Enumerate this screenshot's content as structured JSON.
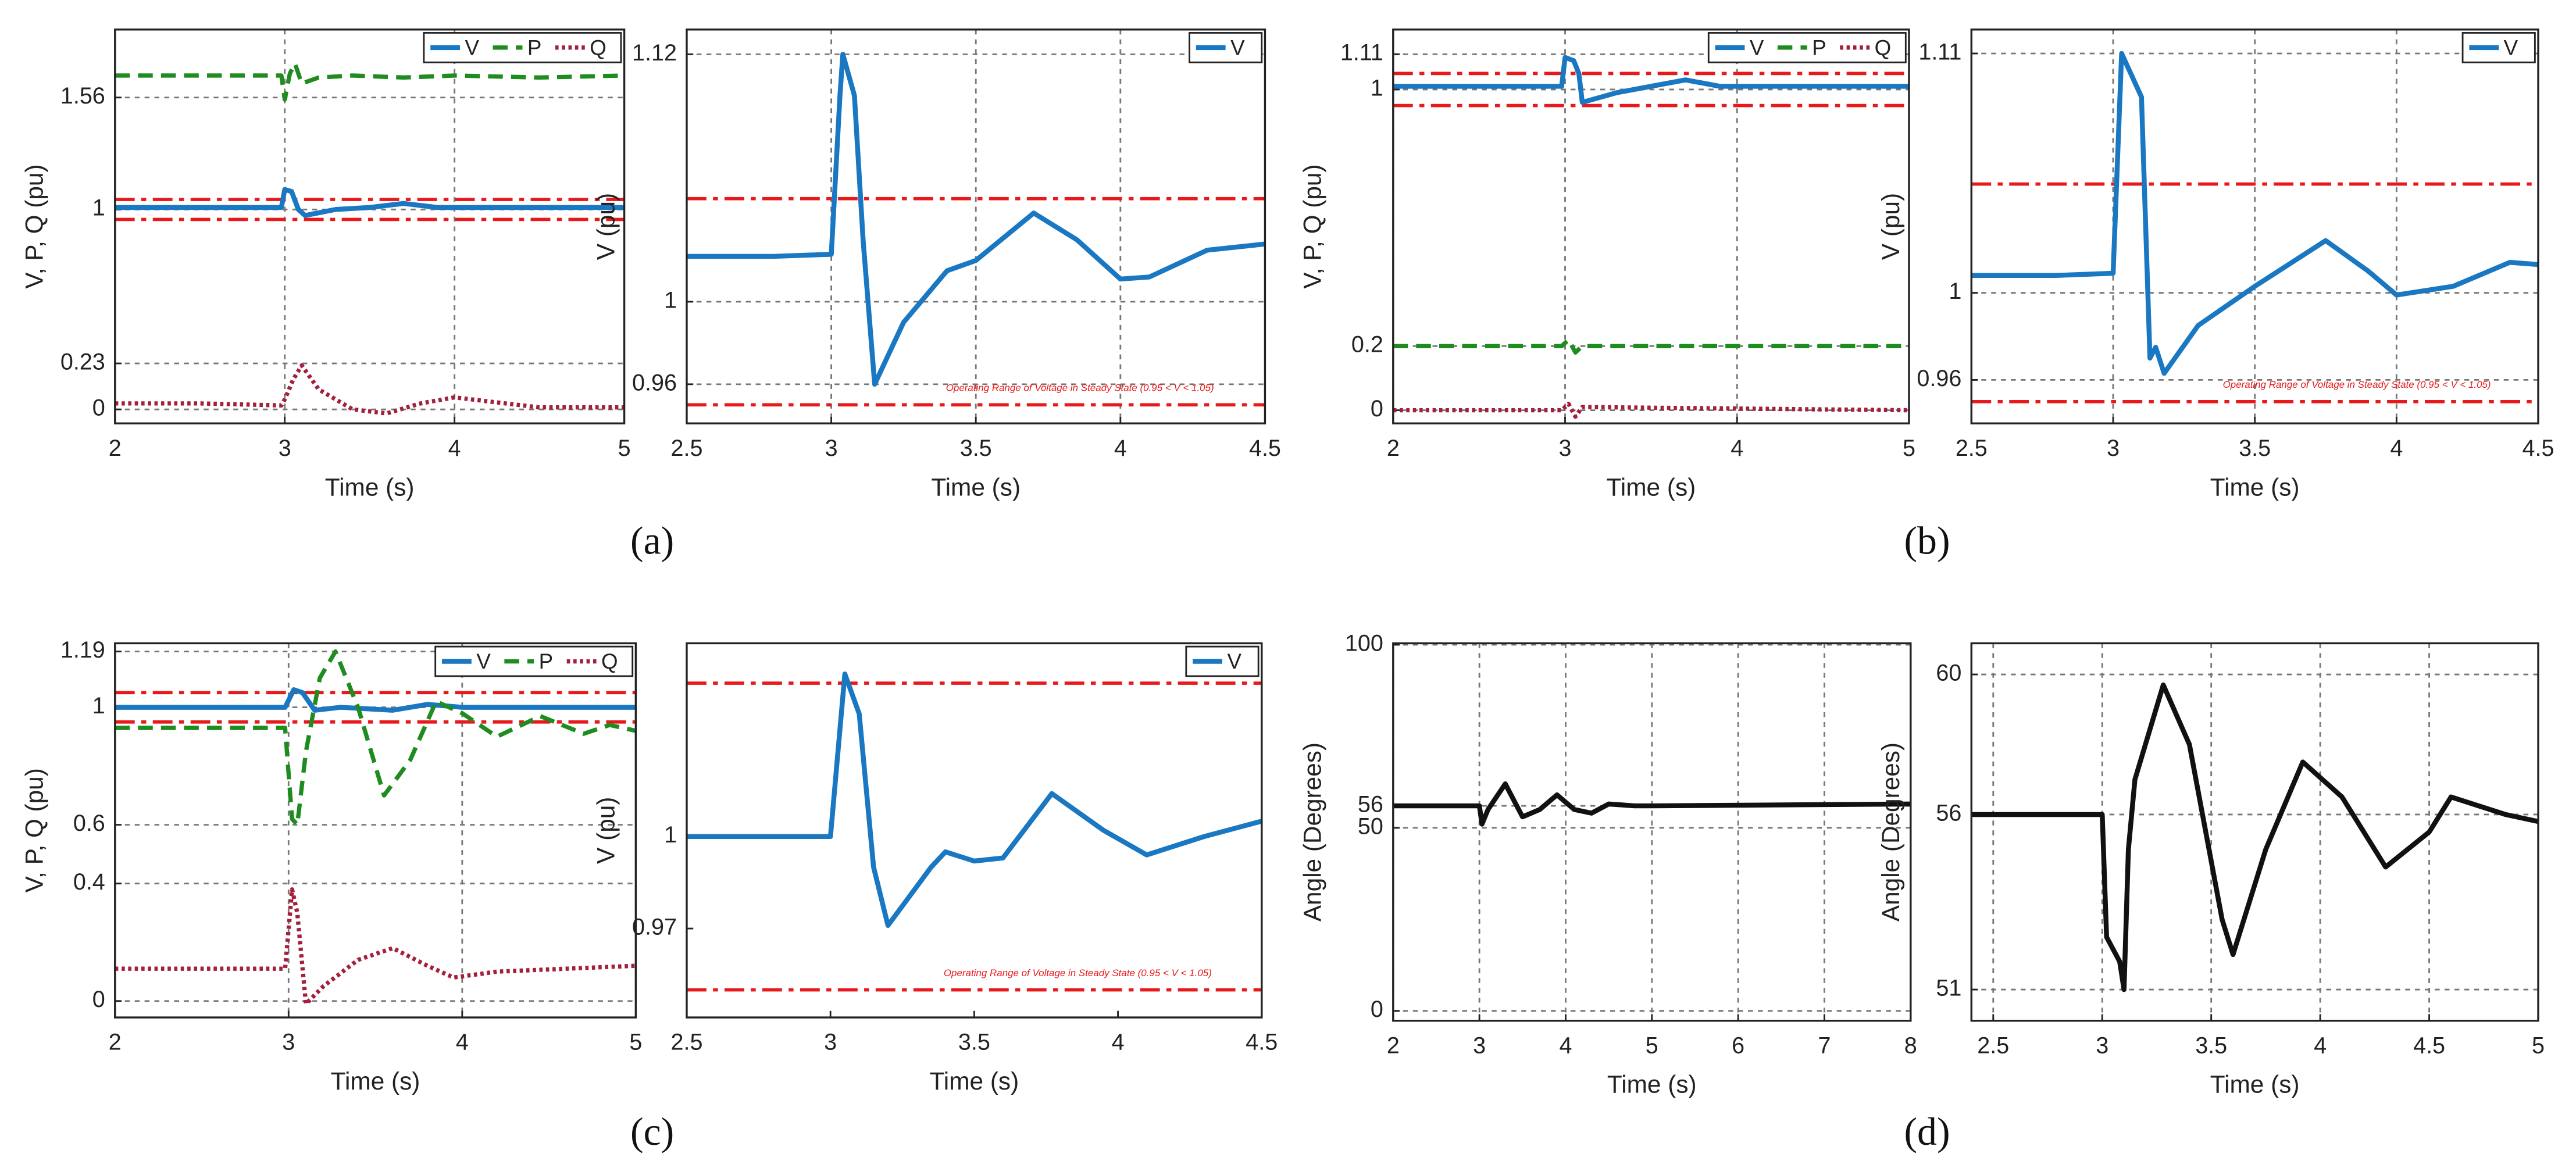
{
  "panel_labels": [
    "(a)",
    "(b)",
    "(c)",
    "(d)"
  ],
  "chart_data": [
    {
      "type": "line",
      "xlabel": "Time (s)",
      "ylabel": "V, P, Q (pu)",
      "xlim": [
        2,
        5
      ],
      "xticks": [
        2,
        3,
        4,
        5
      ],
      "ylim": [
        -0.07,
        1.9
      ],
      "yticks": [
        0,
        0.23,
        1,
        1.56
      ],
      "grid": true,
      "legend": "upper right",
      "reference_lines": [
        1.05,
        0.95
      ],
      "reference_color": "#e8191b",
      "series": [
        {
          "name": "V",
          "color": "#1a78c2",
          "line_style": "solid",
          "x": [
            2,
            2.5,
            2.98,
            3.0,
            3.04,
            3.08,
            3.12,
            3.3,
            3.5,
            3.7,
            3.9,
            4.2,
            4.5,
            5
          ],
          "values": [
            1.01,
            1.01,
            1.01,
            1.1,
            1.09,
            1.0,
            0.97,
            1.0,
            1.01,
            1.03,
            1.01,
            1.01,
            1.01,
            1.01
          ]
        },
        {
          "name": "P",
          "color": "#1e8c1e",
          "line_style": "dashed",
          "x": [
            2,
            2.5,
            2.98,
            3.0,
            3.03,
            3.06,
            3.1,
            3.2,
            3.4,
            3.7,
            4.0,
            4.5,
            5
          ],
          "values": [
            1.67,
            1.67,
            1.67,
            1.55,
            1.68,
            1.73,
            1.63,
            1.66,
            1.67,
            1.66,
            1.67,
            1.66,
            1.67
          ]
        },
        {
          "name": "Q",
          "color": "#a3203d",
          "line_style": "dotted",
          "x": [
            2,
            2.5,
            2.98,
            3.0,
            3.05,
            3.1,
            3.2,
            3.4,
            3.6,
            3.8,
            4.0,
            4.2,
            4.5,
            5
          ],
          "values": [
            0.03,
            0.03,
            0.02,
            0.05,
            0.15,
            0.22,
            0.1,
            0.0,
            -0.02,
            0.03,
            0.06,
            0.04,
            0.01,
            0.01
          ]
        }
      ]
    },
    {
      "type": "line",
      "xlabel": "Time (s)",
      "ylabel": "V (pu)",
      "xlim": [
        2.5,
        4.5
      ],
      "xticks": [
        2.5,
        3,
        3.5,
        4,
        4.5
      ],
      "ylim": [
        0.941,
        1.132
      ],
      "yticks": [
        0.96,
        1,
        1.12
      ],
      "grid": true,
      "legend": "upper right",
      "reference_lines": [
        1.05,
        0.95
      ],
      "reference_color": "#e8191b",
      "annotation": "Operating Range of Voltage in Steady State (0.95 < V < 1.05)",
      "series": [
        {
          "name": "V",
          "color": "#1a78c2",
          "line_style": "solid",
          "x": [
            2.5,
            2.8,
            3.0,
            3.03,
            3.04,
            3.08,
            3.11,
            3.15,
            3.25,
            3.4,
            3.5,
            3.7,
            3.85,
            4.0,
            4.1,
            4.3,
            4.5
          ],
          "values": [
            1.022,
            1.022,
            1.023,
            1.1,
            1.12,
            1.1,
            1.03,
            0.96,
            0.99,
            1.015,
            1.02,
            1.043,
            1.03,
            1.011,
            1.012,
            1.025,
            1.028
          ]
        }
      ]
    },
    {
      "type": "line",
      "xlabel": "Time (s)",
      "ylabel": "V, P, Q (pu)",
      "xlim": [
        2,
        5
      ],
      "xticks": [
        2,
        3,
        4,
        5
      ],
      "ylim": [
        -0.041,
        1.187
      ],
      "yticks": [
        0,
        0.2,
        1,
        1.11
      ],
      "grid": true,
      "legend": "upper right",
      "reference_lines": [
        1.05,
        0.95
      ],
      "reference_color": "#e8191b",
      "series": [
        {
          "name": "V",
          "color": "#1a78c2",
          "line_style": "solid",
          "x": [
            2,
            2.98,
            3.0,
            3.05,
            3.08,
            3.1,
            3.3,
            3.5,
            3.7,
            3.9,
            4.2,
            5
          ],
          "values": [
            1.01,
            1.01,
            1.1,
            1.09,
            1.05,
            0.96,
            0.99,
            1.01,
            1.03,
            1.01,
            1.01,
            1.01
          ]
        },
        {
          "name": "P",
          "color": "#1e8c1e",
          "line_style": "dashed",
          "x": [
            2,
            2.98,
            3.02,
            3.06,
            3.1,
            5
          ],
          "values": [
            0.2,
            0.2,
            0.22,
            0.18,
            0.2,
            0.2
          ]
        },
        {
          "name": "Q",
          "color": "#a3203d",
          "line_style": "dotted",
          "x": [
            2,
            2.98,
            3.02,
            3.06,
            3.1,
            5
          ],
          "values": [
            0,
            0,
            0.02,
            -0.02,
            0.01,
            0
          ]
        }
      ]
    },
    {
      "type": "line",
      "xlabel": "Time (s)",
      "ylabel": "V (pu)",
      "xlim": [
        2.5,
        4.5
      ],
      "xticks": [
        2.5,
        3,
        3.5,
        4,
        4.5
      ],
      "ylim": [
        0.94,
        1.121
      ],
      "yticks": [
        0.96,
        1,
        1.11
      ],
      "grid": true,
      "legend": "upper right",
      "reference_lines": [
        1.05,
        0.95
      ],
      "reference_color": "#e8191b",
      "annotation": "Operating Range of Voltage in Steady State (0.95 < V < 1.05)",
      "series": [
        {
          "name": "V",
          "color": "#1a78c2",
          "line_style": "solid",
          "x": [
            2.5,
            2.8,
            3.0,
            3.03,
            3.1,
            3.13,
            3.15,
            3.18,
            3.3,
            3.5,
            3.75,
            3.9,
            4.0,
            4.2,
            4.4,
            4.5
          ],
          "values": [
            1.008,
            1.008,
            1.009,
            1.11,
            1.09,
            0.97,
            0.975,
            0.963,
            0.985,
            1.003,
            1.024,
            1.01,
            0.999,
            1.003,
            1.014,
            1.013
          ]
        }
      ]
    },
    {
      "type": "line",
      "xlabel": "Time (s)",
      "ylabel": "V, P, Q (pu)",
      "xlim": [
        2,
        5
      ],
      "xticks": [
        2,
        3,
        4,
        5
      ],
      "ylim": [
        -0.056,
        1.218
      ],
      "yticks": [
        0,
        0.4,
        0.6,
        1,
        1.19
      ],
      "grid": true,
      "legend": "upper right",
      "reference_lines": [
        1.05,
        0.95
      ],
      "reference_color": "#e8191b",
      "series": [
        {
          "name": "V",
          "color": "#1a78c2",
          "line_style": "solid",
          "x": [
            2,
            2.98,
            3.03,
            3.08,
            3.15,
            3.3,
            3.6,
            3.8,
            4.0,
            5
          ],
          "values": [
            1.0,
            1.0,
            1.06,
            1.05,
            0.99,
            1.0,
            0.99,
            1.01,
            1.0,
            1.0
          ]
        },
        {
          "name": "P",
          "color": "#1e8c1e",
          "line_style": "dashed",
          "x": [
            2,
            2.98,
            3.02,
            3.05,
            3.1,
            3.18,
            3.27,
            3.4,
            3.55,
            3.7,
            3.85,
            4.0,
            4.2,
            4.45,
            4.7,
            4.85,
            5
          ],
          "values": [
            0.93,
            0.93,
            0.62,
            0.6,
            0.85,
            1.1,
            1.19,
            1.0,
            0.7,
            0.82,
            1.02,
            0.98,
            0.9,
            0.97,
            0.91,
            0.94,
            0.92
          ]
        },
        {
          "name": "Q",
          "color": "#a3203d",
          "line_style": "dotted",
          "x": [
            2,
            2.98,
            3.02,
            3.05,
            3.1,
            3.2,
            3.4,
            3.6,
            3.8,
            3.95,
            4.2,
            4.6,
            5
          ],
          "values": [
            0.11,
            0.11,
            0.38,
            0.3,
            -0.01,
            0.05,
            0.14,
            0.18,
            0.12,
            0.08,
            0.1,
            0.11,
            0.12
          ]
        }
      ]
    },
    {
      "type": "line",
      "xlabel": "Time (s)",
      "ylabel": "V (pu)",
      "xlim": [
        2.5,
        4.5
      ],
      "xticks": [
        2.5,
        3,
        3.5,
        4,
        4.5
      ],
      "ylim": [
        0.941,
        1.063
      ],
      "yticks": [
        0.97,
        1
      ],
      "grid": false,
      "legend": "upper right",
      "reference_lines": [
        1.05,
        0.95
      ],
      "reference_color": "#e8191b",
      "annotation": "Operating Range of Voltage in Steady State (0.95 < V < 1.05)",
      "series": [
        {
          "name": "V",
          "color": "#1a78c2",
          "line_style": "solid",
          "x": [
            2.5,
            2.8,
            3.0,
            3.05,
            3.1,
            3.15,
            3.2,
            3.35,
            3.4,
            3.5,
            3.6,
            3.77,
            3.95,
            4.1,
            4.3,
            4.5
          ],
          "values": [
            1.0,
            1.0,
            1.0,
            1.053,
            1.04,
            0.99,
            0.971,
            0.99,
            0.995,
            0.992,
            0.993,
            1.014,
            1.002,
            0.994,
            1.0,
            1.005
          ]
        }
      ]
    },
    {
      "type": "line",
      "xlabel": "Time (s)",
      "ylabel": "Angle (Degrees)",
      "xlim": [
        2,
        8
      ],
      "xticks": [
        2,
        3,
        4,
        5,
        6,
        7,
        8
      ],
      "ylim": [
        -2.7,
        100.4
      ],
      "yticks": [
        0,
        50,
        56,
        100
      ],
      "grid": true,
      "color": "#111111",
      "x": [
        2,
        3.0,
        3.03,
        3.1,
        3.3,
        3.5,
        3.7,
        3.9,
        4.1,
        4.3,
        4.5,
        4.8,
        5,
        8
      ],
      "values": [
        56,
        56,
        51,
        55,
        62,
        53,
        55,
        59,
        55,
        54,
        56.5,
        56,
        56,
        56.5
      ]
    },
    {
      "type": "line",
      "xlabel": "Time (s)",
      "ylabel": "Angle (Degrees)",
      "xlim": [
        2.4,
        5
      ],
      "xticks": [
        2.5,
        3,
        3.5,
        4,
        4.5,
        5
      ],
      "ylim": [
        50.11,
        60.89
      ],
      "yticks": [
        51,
        56,
        60
      ],
      "grid": true,
      "color": "#111111",
      "x": [
        2.4,
        2.8,
        3.0,
        3.02,
        3.08,
        3.1,
        3.12,
        3.15,
        3.28,
        3.4,
        3.55,
        3.6,
        3.75,
        3.92,
        4.1,
        4.3,
        4.5,
        4.6,
        4.85,
        5
      ],
      "values": [
        56,
        56,
        56,
        52.5,
        51.8,
        51,
        55,
        57,
        59.7,
        58,
        53,
        52,
        55,
        57.5,
        56.5,
        54.5,
        55.5,
        56.5,
        56,
        55.8
      ]
    }
  ]
}
